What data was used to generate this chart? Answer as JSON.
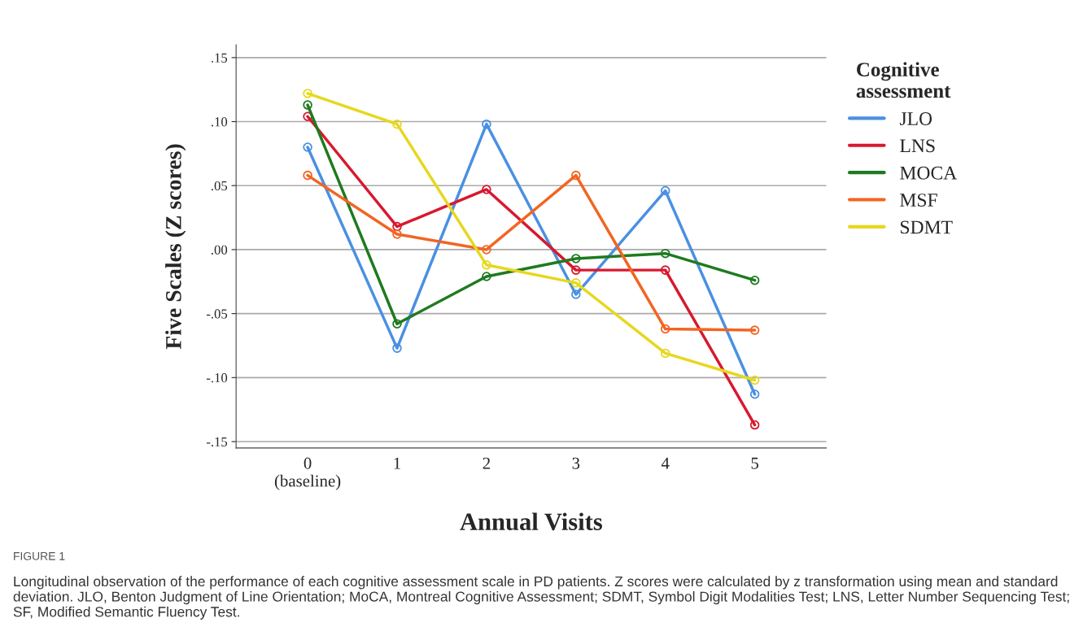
{
  "chart_data": {
    "type": "line",
    "xlabel": "Annual Visits",
    "ylabel": "Five Scales (Z scores)",
    "legend_title": "Cognitive\nassessment",
    "legend": "right",
    "categories": [
      "0\n(baseline)",
      "1",
      "2",
      "3",
      "4",
      "5"
    ],
    "series": [
      {
        "name": "JLO",
        "color": "#4a90e2",
        "values": [
          0.08,
          -0.077,
          0.098,
          -0.035,
          0.046,
          -0.113
        ]
      },
      {
        "name": "LNS",
        "color": "#d7192f",
        "values": [
          0.104,
          0.018,
          0.047,
          -0.016,
          -0.016,
          -0.137
        ]
      },
      {
        "name": "MOCA",
        "color": "#1f7a1f",
        "values": [
          0.113,
          -0.058,
          -0.021,
          -0.007,
          -0.003,
          -0.024
        ]
      },
      {
        "name": "MSF",
        "color": "#f26522",
        "values": [
          0.058,
          0.012,
          0.0,
          0.058,
          -0.062,
          -0.063
        ]
      },
      {
        "name": "SDMT",
        "color": "#e6d81e",
        "values": [
          0.122,
          0.098,
          -0.012,
          -0.026,
          -0.081,
          -0.102
        ]
      }
    ],
    "ylim": [
      -0.155,
      0.16
    ],
    "yticks": [
      {
        "value": -0.15,
        "label": "-.15"
      },
      {
        "value": -0.1,
        "label": "-.10"
      },
      {
        "value": -0.05,
        "label": "-.05"
      },
      {
        "value": 0,
        "label": ".00"
      },
      {
        "value": 0.05,
        "label": ".05"
      },
      {
        "value": 0.1,
        "label": ".10"
      },
      {
        "value": 0.15,
        "label": ".15"
      }
    ],
    "grid": "y",
    "marker": "circle",
    "line_style": "solid",
    "annotations": [
      "FIGURE 1",
      "Longitudinal observation of the performance of each cognitive assessment scale in PD patients. Z scores were calculated by z transformation using mean and standard deviation. JLO, Benton Judgment of Line Orientation; MoCA, Montreal Cognitive Assessment; SDMT, Symbol Digit Modalities Test; LNS, Letter Number Sequencing Test; SF, Modified Semantic Fluency Test."
    ]
  }
}
